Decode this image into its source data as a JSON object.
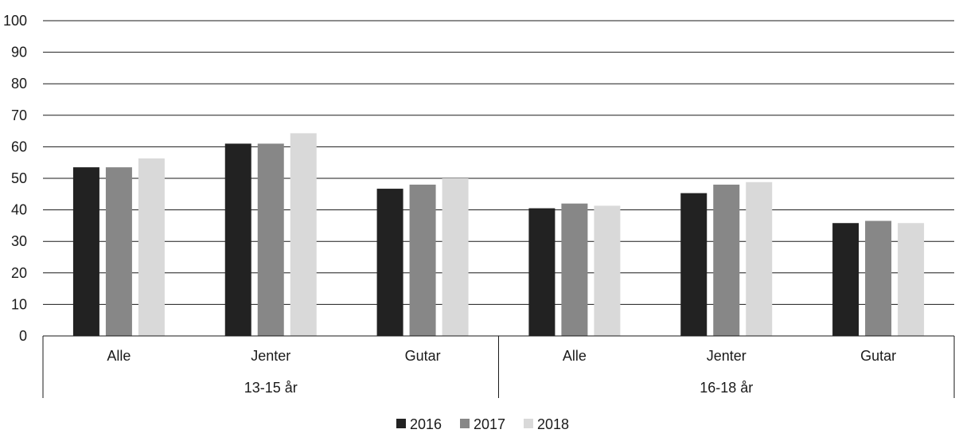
{
  "chart_data": {
    "type": "bar",
    "title": "",
    "xlabel": "",
    "ylabel": "",
    "ylim": [
      0,
      100
    ],
    "yticks": [
      0,
      10,
      20,
      30,
      40,
      50,
      60,
      70,
      80,
      90,
      100
    ],
    "grid": true,
    "legend_position": "bottom",
    "groups": [
      {
        "label": "13-15 år",
        "categories": [
          "Alle",
          "Jenter",
          "Gutar"
        ]
      },
      {
        "label": "16-18 år",
        "categories": [
          "Alle",
          "Jenter",
          "Gutar"
        ]
      }
    ],
    "categories": [
      "Alle",
      "Jenter",
      "Gutar",
      "Alle",
      "Jenter",
      "Gutar"
    ],
    "series": [
      {
        "name": "2016",
        "color": "#222222",
        "values": [
          53.5,
          61,
          46.7,
          40.5,
          45.3,
          35.8
        ]
      },
      {
        "name": "2017",
        "color": "#878787",
        "values": [
          53.5,
          61,
          48,
          42,
          48,
          36.5
        ]
      },
      {
        "name": "2018",
        "color": "#d9d9d9",
        "values": [
          56.3,
          64.3,
          50,
          41.3,
          48.8,
          35.8
        ]
      }
    ]
  }
}
